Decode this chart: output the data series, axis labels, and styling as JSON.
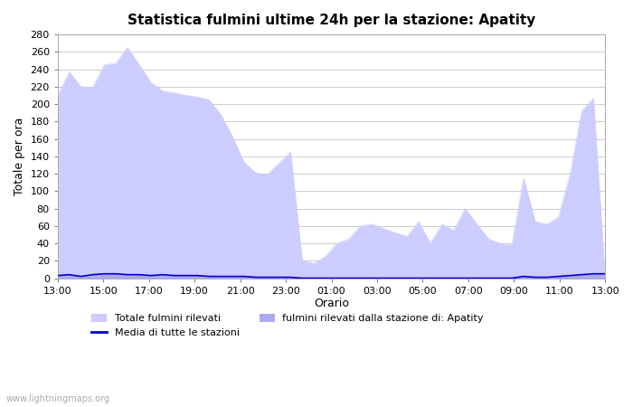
{
  "title": "Statistica fulmini ultime 24h per la stazione: Apatity",
  "xlabel": "Orario",
  "ylabel": "Totale per ora",
  "watermark": "www.lightningmaps.org",
  "xlim": [
    0,
    48
  ],
  "ylim": [
    0,
    280
  ],
  "yticks": [
    0,
    20,
    40,
    60,
    80,
    100,
    120,
    140,
    160,
    180,
    200,
    220,
    240,
    260,
    280
  ],
  "xtick_labels": [
    "13:00",
    "15:00",
    "17:00",
    "19:00",
    "21:00",
    "23:00",
    "01:00",
    "03:00",
    "05:00",
    "07:00",
    "09:00",
    "11:00",
    "13:00"
  ],
  "xtick_positions": [
    0,
    4,
    8,
    12,
    16,
    20,
    24,
    28,
    32,
    36,
    40,
    44,
    48
  ],
  "bg_color": "#ffffff",
  "grid_color": "#cccccc",
  "area1_color": "#ccccff",
  "area2_color": "#aaaaee",
  "line_color": "#0000cc",
  "legend_label1": "Totale fulmini rilevati",
  "legend_label2": "fulmini rilevati dalla stazione di: Apatity",
  "legend_label3": "Media di tutte le stazioni",
  "total_values": [
    210,
    237,
    220,
    219,
    245,
    247,
    265,
    245,
    225,
    215,
    213,
    210,
    208,
    205,
    188,
    163,
    133,
    121,
    119,
    132,
    145,
    20,
    17,
    25,
    40,
    45,
    60,
    62,
    57,
    52,
    48,
    65,
    40,
    62,
    55,
    80,
    62,
    45,
    40,
    38,
    115,
    65,
    62,
    70,
    120,
    192,
    207,
    0
  ],
  "station_values": [
    3,
    4,
    2,
    4,
    5,
    5,
    4,
    4,
    3,
    4,
    3,
    3,
    3,
    2,
    2,
    2,
    2,
    1,
    1,
    1,
    1,
    0,
    0,
    0,
    0,
    0,
    0,
    0,
    0,
    0,
    0,
    0,
    0,
    0,
    0,
    0,
    0,
    0,
    0,
    0,
    2,
    1,
    1,
    2,
    3,
    4,
    5,
    5
  ],
  "avg_values": [
    3,
    4,
    2,
    4,
    5,
    5,
    4,
    4,
    3,
    4,
    3,
    3,
    3,
    2,
    2,
    2,
    2,
    1,
    1,
    1,
    1,
    0,
    0,
    0,
    0,
    0,
    0,
    0,
    0,
    0,
    0,
    0,
    0,
    0,
    0,
    0,
    0,
    0,
    0,
    0,
    2,
    1,
    1,
    2,
    3,
    4,
    5,
    5
  ]
}
